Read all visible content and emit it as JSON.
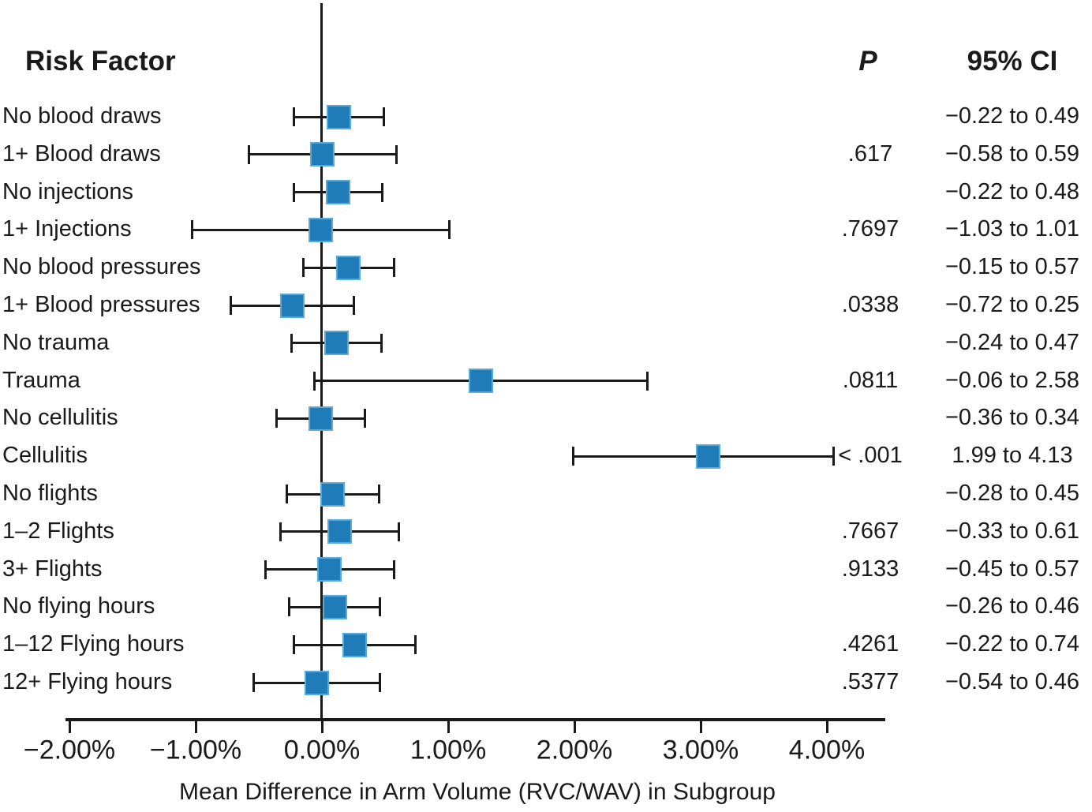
{
  "headers": {
    "risk_factor": "Risk Factor",
    "p": "P",
    "ci": "95% CI"
  },
  "chart_data": {
    "type": "forest",
    "title": "",
    "xlabel": "Mean Difference in Arm Volume (RVC/WAV) in Subgroup",
    "x_tick_labels": [
      "−2.00%",
      "−1.00%",
      "0.00%",
      "1.00%",
      "2.00%",
      "3.00%",
      "4.00%"
    ],
    "x_tick_values": [
      -2,
      -1,
      0,
      1,
      2,
      3,
      4
    ],
    "xlim": [
      -2.03,
      4.46
    ],
    "reference_line": 0,
    "grid": "off",
    "marker_color": "#1f7cb8",
    "marker_edge_color": "#5aaad8",
    "line_color": "#1a1a1a",
    "rows": [
      {
        "label": "No blood draws",
        "p": "",
        "ci_text": "−0.22 to 0.49",
        "lo": -0.22,
        "hi": 0.49,
        "mean": 0.135
      },
      {
        "label": "1+ Blood draws",
        "p": ".617",
        "ci_text": "−0.58 to 0.59",
        "lo": -0.58,
        "hi": 0.59,
        "mean": 0.005
      },
      {
        "label": "No injections",
        "p": "",
        "ci_text": "−0.22 to 0.48",
        "lo": -0.22,
        "hi": 0.48,
        "mean": 0.13
      },
      {
        "label": "1+ Injections",
        "p": ".7697",
        "ci_text": "−1.03 to 1.01",
        "lo": -1.03,
        "hi": 1.01,
        "mean": -0.01
      },
      {
        "label": "No blood pressures",
        "p": "",
        "ci_text": "−0.15 to 0.57",
        "lo": -0.15,
        "hi": 0.57,
        "mean": 0.21
      },
      {
        "label": "1+ Blood pressures",
        "p": ".0338",
        "ci_text": "−0.72 to 0.25",
        "lo": -0.72,
        "hi": 0.25,
        "mean": -0.235
      },
      {
        "label": "No trauma",
        "p": "",
        "ci_text": "−0.24 to 0.47",
        "lo": -0.24,
        "hi": 0.47,
        "mean": 0.115
      },
      {
        "label": "Trauma",
        "p": ".0811",
        "ci_text": "−0.06 to 2.58",
        "lo": -0.06,
        "hi": 2.58,
        "mean": 1.26
      },
      {
        "label": "No cellulitis",
        "p": "",
        "ci_text": "−0.36 to 0.34",
        "lo": -0.36,
        "hi": 0.34,
        "mean": -0.01
      },
      {
        "label": "Cellulitis",
        "p": "< .001",
        "ci_text": "1.99 to 4.13",
        "lo": 1.99,
        "hi": 4.13,
        "mean": 3.06
      },
      {
        "label": "No flights",
        "p": "",
        "ci_text": "−0.28 to 0.45",
        "lo": -0.28,
        "hi": 0.45,
        "mean": 0.085
      },
      {
        "label": "1–2 Flights",
        "p": ".7667",
        "ci_text": "−0.33 to 0.61",
        "lo": -0.33,
        "hi": 0.61,
        "mean": 0.14
      },
      {
        "label": "3+ Flights",
        "p": ".9133",
        "ci_text": "−0.45 to 0.57",
        "lo": -0.45,
        "hi": 0.57,
        "mean": 0.06
      },
      {
        "label": "No flying hours",
        "p": "",
        "ci_text": "−0.26 to 0.46",
        "lo": -0.26,
        "hi": 0.46,
        "mean": 0.1
      },
      {
        "label": "1–12 Flying hours",
        "p": ".4261",
        "ci_text": "−0.22 to 0.74",
        "lo": -0.22,
        "hi": 0.74,
        "mean": 0.26
      },
      {
        "label": "12+ Flying hours",
        "p": ".5377",
        "ci_text": "−0.54 to 0.46",
        "lo": -0.54,
        "hi": 0.46,
        "mean": -0.04
      }
    ]
  }
}
